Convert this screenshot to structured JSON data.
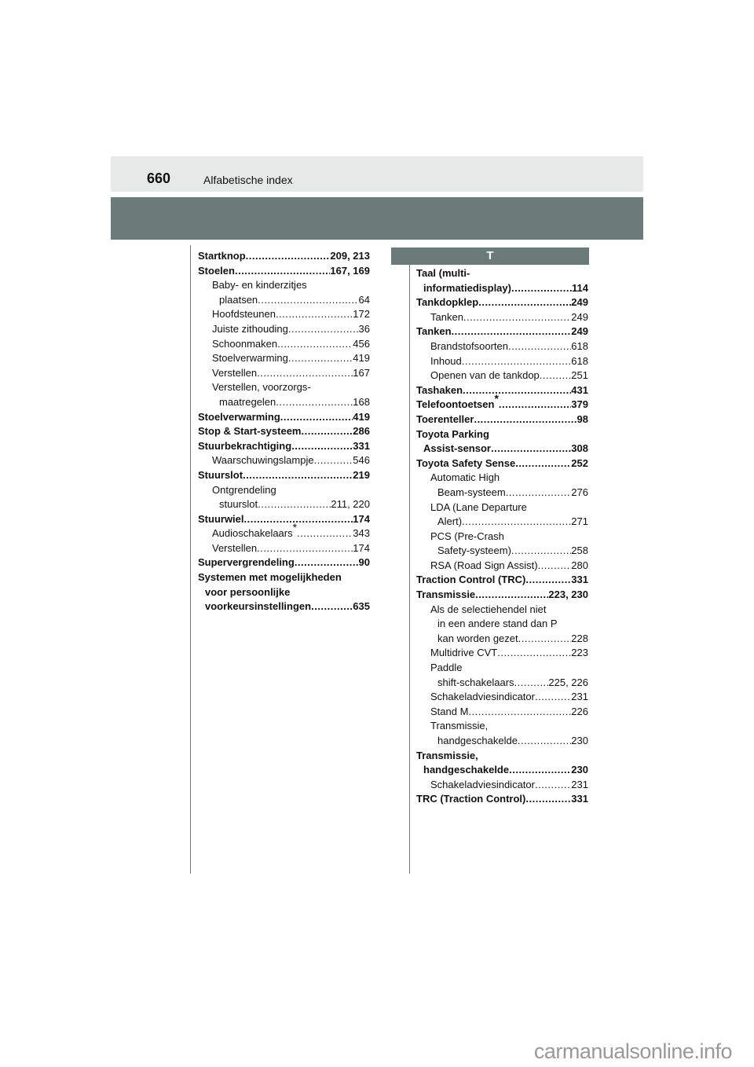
{
  "header": {
    "page_number": "660",
    "section_title": "Alfabetische index"
  },
  "letter_heading": "T",
  "left_column": [
    {
      "text": "Startknop",
      "page": "209, 213",
      "style": "h"
    },
    {
      "text": "Stoelen",
      "page": "167, 169",
      "style": "h"
    },
    {
      "text": "Baby- en kinderzitjes",
      "page": "",
      "style": "s"
    },
    {
      "text": "plaatsen",
      "page": "64",
      "style": "sc"
    },
    {
      "text": "Hoofdsteunen",
      "page": "172",
      "style": "s"
    },
    {
      "text": "Juiste zithouding",
      "page": "36",
      "style": "s"
    },
    {
      "text": "Schoonmaken",
      "page": "456",
      "style": "s"
    },
    {
      "text": "Stoelverwarming",
      "page": "419",
      "style": "s"
    },
    {
      "text": "Verstellen",
      "page": "167",
      "style": "s"
    },
    {
      "text": "Verstellen, voorzorgs-",
      "page": "",
      "style": "s"
    },
    {
      "text": "maatregelen",
      "page": "168",
      "style": "sc"
    },
    {
      "text": "Stoelverwarming",
      "page": "419",
      "style": "h"
    },
    {
      "text": "Stop & Start-systeem",
      "page": "286",
      "style": "h"
    },
    {
      "text": "Stuurbekrachtiging",
      "page": "331",
      "style": "h"
    },
    {
      "text": "Waarschuwingslampje",
      "page": "546",
      "style": "s"
    },
    {
      "text": "Stuurslot",
      "page": "219",
      "style": "h"
    },
    {
      "text": "Ontgrendeling",
      "page": "",
      "style": "s"
    },
    {
      "text": "stuurslot",
      "page": "211, 220",
      "style": "sc"
    },
    {
      "text": "Stuurwiel",
      "page": "174",
      "style": "h"
    },
    {
      "text": "Audioschakelaars",
      "sup": "*",
      "page": "343",
      "style": "s"
    },
    {
      "text": "Verstellen",
      "page": "174",
      "style": "s"
    },
    {
      "text": "Supervergrendeling",
      "page": "90",
      "style": "h"
    },
    {
      "text": "Systemen met mogelijkheden",
      "page": "",
      "style": "h"
    },
    {
      "text": "voor persoonlijke",
      "page": "",
      "style": "hc"
    },
    {
      "text": "voorkeursinstellingen",
      "page": "635",
      "style": "hc"
    }
  ],
  "right_column": [
    {
      "text": "Taal (multi-",
      "page": "",
      "style": "h"
    },
    {
      "text": "informatiedisplay)",
      "page": "114",
      "style": "hc"
    },
    {
      "text": "Tankdopklep",
      "page": "249",
      "style": "h"
    },
    {
      "text": "Tanken",
      "page": "249",
      "style": "s"
    },
    {
      "text": "Tanken",
      "page": "249",
      "style": "h"
    },
    {
      "text": "Brandstofsoorten",
      "page": "618",
      "style": "s"
    },
    {
      "text": "Inhoud",
      "page": "618",
      "style": "s"
    },
    {
      "text": "Openen van de tankdop",
      "page": "251",
      "style": "s"
    },
    {
      "text": "Tashaken",
      "page": "431",
      "style": "h"
    },
    {
      "text": "Telefoontoetsen",
      "sup": "*",
      "page": "379",
      "style": "h"
    },
    {
      "text": "Toerenteller",
      "page": "98",
      "style": "h"
    },
    {
      "text": "Toyota Parking",
      "page": "",
      "style": "h"
    },
    {
      "text": "Assist-sensor",
      "page": "308",
      "style": "hc"
    },
    {
      "text": "Toyota Safety Sense",
      "page": "252",
      "style": "h"
    },
    {
      "text": "Automatic High",
      "page": "",
      "style": "s"
    },
    {
      "text": "Beam-systeem",
      "page": "276",
      "style": "sc"
    },
    {
      "text": "LDA  (Lane Departure",
      "page": "",
      "style": "s"
    },
    {
      "text": "Alert)",
      "page": "271",
      "style": "sc"
    },
    {
      "text": "PCS (Pre-Crash",
      "page": "",
      "style": "s"
    },
    {
      "text": "Safety-systeem)",
      "page": "258",
      "style": "sc"
    },
    {
      "text": "RSA (Road Sign Assist)",
      "page": "280",
      "style": "s"
    },
    {
      "text": "Traction Control (TRC)",
      "page": "331",
      "style": "h"
    },
    {
      "text": "Transmissie",
      "page": "223, 230",
      "style": "h"
    },
    {
      "text": "Als de selectiehendel niet",
      "page": "",
      "style": "s"
    },
    {
      "text": "in een andere stand dan P",
      "page": "",
      "style": "sc"
    },
    {
      "text": "kan worden gezet",
      "page": "228",
      "style": "sc"
    },
    {
      "text": "Multidrive CVT",
      "page": "223",
      "style": "s"
    },
    {
      "text": "Paddle",
      "page": "",
      "style": "s"
    },
    {
      "text": "shift-schakelaars",
      "page": "225, 226",
      "style": "sc"
    },
    {
      "text": "Schakeladviesindicator",
      "page": "231",
      "style": "s"
    },
    {
      "text": "Stand M",
      "page": "226",
      "style": "s"
    },
    {
      "text": "Transmissie,",
      "page": "",
      "style": "s"
    },
    {
      "text": "handgeschakelde",
      "page": "230",
      "style": "sc"
    },
    {
      "text": "Transmissie,",
      "page": "",
      "style": "h"
    },
    {
      "text": "handgeschakelde",
      "page": "230",
      "style": "hc"
    },
    {
      "text": "Schakeladviesindicator",
      "page": "231",
      "style": "s"
    },
    {
      "text": "TRC (Traction Control)",
      "page": "331",
      "style": "h"
    }
  ],
  "watermark": "carmanualsonline.info"
}
